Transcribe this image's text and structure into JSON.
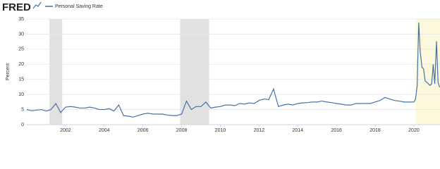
{
  "chart_data": {
    "type": "line",
    "logo": "FRED",
    "ylabel": "Percent",
    "series": [
      {
        "name": "Personal Saving Rate",
        "color": "#4572a7",
        "x": [
          2000,
          2000.25,
          2000.5,
          2000.75,
          2001,
          2001.25,
          2001.5,
          2001.75,
          2002,
          2002.25,
          2002.5,
          2002.75,
          2003,
          2003.25,
          2003.5,
          2003.75,
          2004,
          2004.25,
          2004.5,
          2004.75,
          2005,
          2005.25,
          2005.5,
          2005.75,
          2006,
          2006.25,
          2006.5,
          2006.75,
          2007,
          2007.25,
          2007.5,
          2007.75,
          2008,
          2008.25,
          2008.5,
          2008.75,
          2009,
          2009.25,
          2009.5,
          2009.75,
          2010,
          2010.25,
          2010.5,
          2010.75,
          2011,
          2011.25,
          2011.5,
          2011.75,
          2012,
          2012.25,
          2012.5,
          2012.75,
          2013,
          2013.25,
          2013.5,
          2013.75,
          2014,
          2014.25,
          2014.5,
          2014.75,
          2015,
          2015.25,
          2015.5,
          2015.75,
          2016,
          2016.25,
          2016.5,
          2016.75,
          2017,
          2017.25,
          2017.5,
          2017.75,
          2018,
          2018.25,
          2018.5,
          2018.75,
          2019,
          2019.25,
          2019.5,
          2019.75,
          2020,
          2020.08,
          2020.17,
          2020.25,
          2020.33,
          2020.42,
          2020.5,
          2020.58,
          2020.67,
          2020.75,
          2020.83,
          2020.92,
          2021,
          2021.08,
          2021.17,
          2021.25,
          2021.33
        ],
        "values": [
          5.0,
          4.6,
          4.8,
          5.0,
          4.5,
          5.0,
          7.0,
          4.0,
          5.8,
          6.0,
          5.8,
          5.5,
          5.5,
          5.8,
          5.5,
          5.0,
          5.0,
          5.3,
          4.5,
          6.5,
          3.0,
          2.8,
          2.5,
          3.0,
          3.5,
          3.8,
          3.5,
          3.5,
          3.5,
          3.2,
          3.0,
          3.0,
          3.5,
          7.8,
          5.0,
          6.0,
          6.0,
          7.5,
          5.5,
          5.8,
          6.0,
          6.5,
          6.5,
          6.3,
          7.0,
          6.8,
          7.2,
          7.0,
          8.0,
          8.5,
          8.3,
          11.8,
          6.0,
          6.5,
          6.8,
          6.5,
          7.0,
          7.2,
          7.3,
          7.5,
          7.5,
          7.8,
          7.5,
          7.3,
          7.0,
          6.8,
          6.5,
          6.5,
          7.0,
          7.0,
          7.0,
          7.0,
          7.5,
          8.0,
          9.0,
          8.5,
          8.0,
          7.8,
          7.5,
          7.5,
          7.5,
          8.3,
          12.8,
          33.8,
          24.0,
          19.0,
          18.5,
          14.5,
          14.0,
          13.5,
          13.0,
          13.5,
          20.0,
          13.5,
          27.6,
          14.0,
          12.4
        ]
      }
    ],
    "shaded": [
      {
        "range": [
          2001.17,
          2001.83
        ],
        "color": "#e1e1e1"
      },
      {
        "range": [
          2007.92,
          2009.42
        ],
        "color": "#e1e1e1"
      },
      {
        "range": [
          2020.1,
          2021.35
        ],
        "color": "#fbf8dc"
      }
    ],
    "xlim": [
      2000,
      2021.35
    ],
    "xticks": [
      2002,
      2004,
      2006,
      2008,
      2010,
      2012,
      2014,
      2016,
      2018,
      2020
    ],
    "ylim": [
      0,
      35
    ],
    "yticks": [
      0,
      5,
      10,
      15,
      20,
      25,
      30,
      35
    ],
    "grid": true
  }
}
